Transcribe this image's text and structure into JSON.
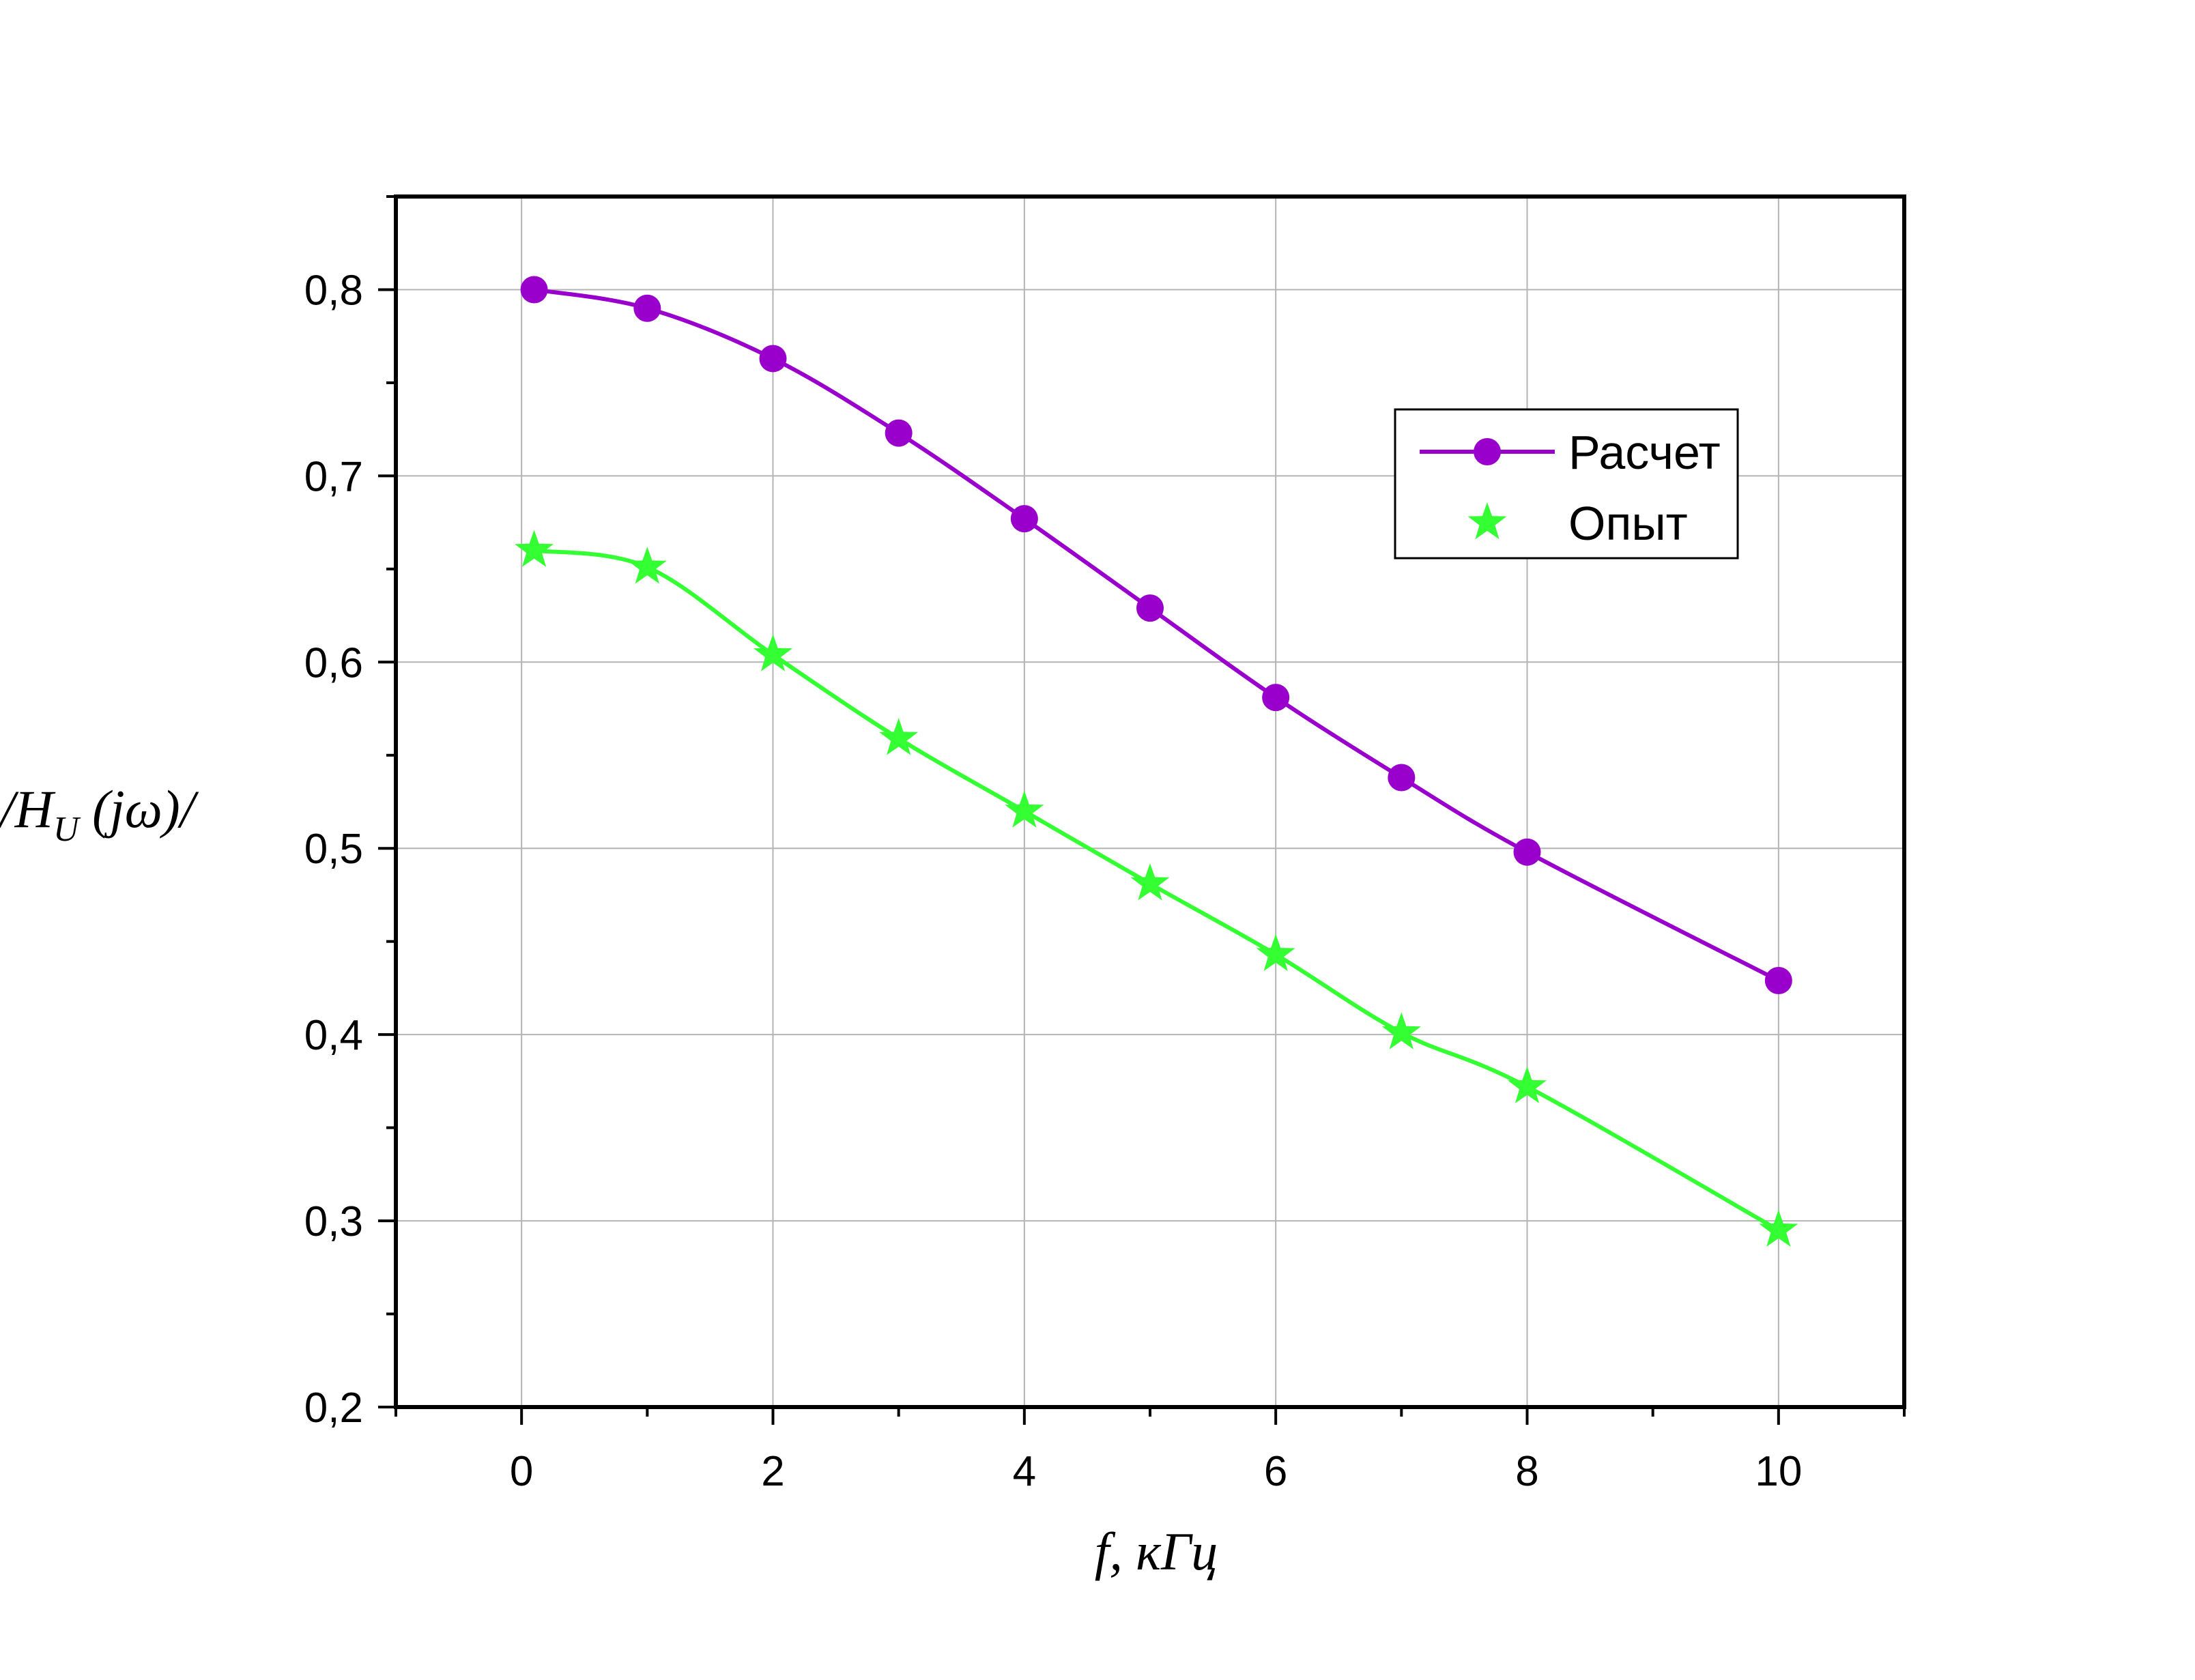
{
  "chart_data": {
    "type": "line",
    "xlabel": "f, кГц",
    "ylabel_main": "/H",
    "ylabel_sub": "U",
    "ylabel_rest": " (jω)/",
    "xlim": [
      -1,
      11
    ],
    "ylim": [
      0.2,
      0.85
    ],
    "x_ticks": [
      0,
      2,
      4,
      6,
      8,
      10
    ],
    "x_tick_labels": [
      "0",
      "2",
      "4",
      "6",
      "8",
      "10"
    ],
    "y_ticks": [
      0.2,
      0.3,
      0.4,
      0.5,
      0.6,
      0.7,
      0.8
    ],
    "y_tick_labels": [
      "0,2",
      "0,3",
      "0,4",
      "0,5",
      "0,6",
      "0,7",
      "0,8"
    ],
    "grid": true,
    "legend_position": "top-right",
    "series": [
      {
        "name": "Расчет",
        "color": "#9900cc",
        "marker": "circle",
        "x": [
          0.1,
          1,
          2,
          3,
          4,
          5,
          6,
          7,
          8,
          10
        ],
        "y": [
          0.8,
          0.79,
          0.763,
          0.723,
          0.677,
          0.629,
          0.581,
          0.538,
          0.498,
          0.429
        ]
      },
      {
        "name": "Опыт",
        "color": "#33ff33",
        "marker": "star",
        "x": [
          0.1,
          1,
          2,
          3,
          4,
          5,
          6,
          7,
          8,
          10
        ],
        "y": [
          0.66,
          0.651,
          0.604,
          0.559,
          0.52,
          0.481,
          0.443,
          0.401,
          0.372,
          0.295
        ]
      }
    ]
  }
}
